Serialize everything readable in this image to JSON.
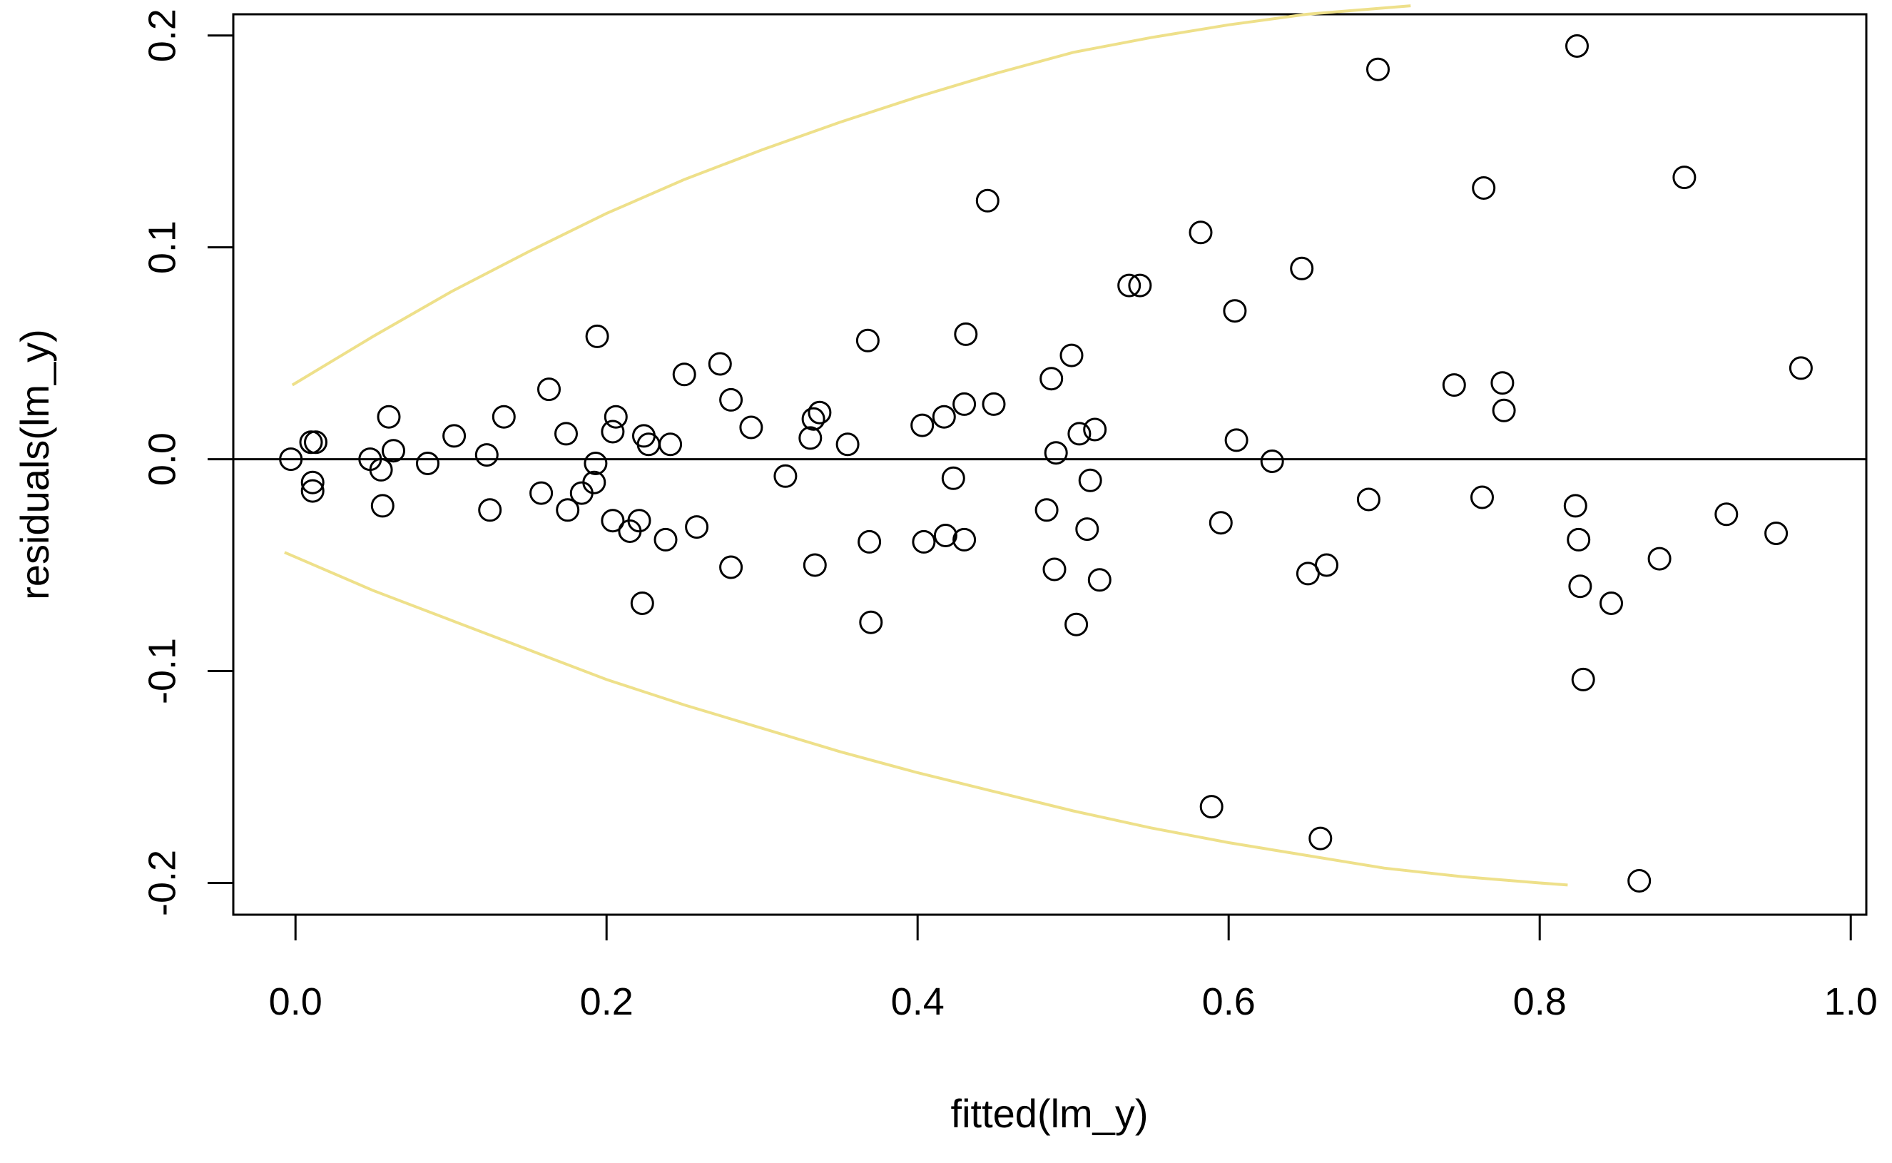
{
  "chart_data": {
    "type": "scatter",
    "title": "",
    "xlabel": "fitted(lm_y)",
    "ylabel": "residuals(lm_y)",
    "xlim": [
      -0.04,
      1.01
    ],
    "ylim": [
      -0.215,
      0.21
    ],
    "xticks": [
      0.0,
      0.2,
      0.4,
      0.6,
      0.8,
      1.0
    ],
    "xtick_labels": [
      "0.0",
      "0.2",
      "0.4",
      "0.6",
      "0.8",
      "1.0"
    ],
    "yticks": [
      -0.2,
      -0.1,
      0.0,
      0.1,
      0.2
    ],
    "ytick_labels": [
      "-0.2",
      "-0.1",
      "0.0",
      "0.1",
      "0.2"
    ],
    "grid": false,
    "legend": "none",
    "reference_line": {
      "y": 0.0,
      "color": "#000000"
    },
    "envelope": {
      "color": "#eee08a",
      "upper": [
        [
          -0.002,
          0.035
        ],
        [
          0.05,
          0.058
        ],
        [
          0.1,
          0.079
        ],
        [
          0.15,
          0.098
        ],
        [
          0.2,
          0.116
        ],
        [
          0.25,
          0.132
        ],
        [
          0.3,
          0.146
        ],
        [
          0.35,
          0.159
        ],
        [
          0.4,
          0.171
        ],
        [
          0.45,
          0.182
        ],
        [
          0.5,
          0.192
        ],
        [
          0.55,
          0.199
        ],
        [
          0.6,
          0.205
        ],
        [
          0.65,
          0.21
        ],
        [
          0.7,
          0.213
        ],
        [
          0.717,
          0.214
        ]
      ],
      "lower": [
        [
          -0.007,
          -0.044
        ],
        [
          0.05,
          -0.062
        ],
        [
          0.1,
          -0.076
        ],
        [
          0.15,
          -0.09
        ],
        [
          0.2,
          -0.104
        ],
        [
          0.25,
          -0.116
        ],
        [
          0.3,
          -0.127
        ],
        [
          0.35,
          -0.138
        ],
        [
          0.4,
          -0.148
        ],
        [
          0.45,
          -0.157
        ],
        [
          0.5,
          -0.166
        ],
        [
          0.55,
          -0.174
        ],
        [
          0.6,
          -0.181
        ],
        [
          0.65,
          -0.187
        ],
        [
          0.7,
          -0.193
        ],
        [
          0.75,
          -0.197
        ],
        [
          0.8,
          -0.2
        ],
        [
          0.818,
          -0.201
        ]
      ]
    },
    "points": [
      [
        -0.003,
        0.0
      ],
      [
        0.01,
        0.008
      ],
      [
        0.013,
        0.008
      ],
      [
        0.011,
        -0.011
      ],
      [
        0.011,
        -0.015
      ],
      [
        0.048,
        0.0
      ],
      [
        0.055,
        -0.005
      ],
      [
        0.056,
        -0.022
      ],
      [
        0.06,
        0.02
      ],
      [
        0.063,
        0.004
      ],
      [
        0.085,
        -0.002
      ],
      [
        0.102,
        0.011
      ],
      [
        0.123,
        0.002
      ],
      [
        0.125,
        -0.024
      ],
      [
        0.134,
        0.02
      ],
      [
        0.158,
        -0.016
      ],
      [
        0.163,
        0.033
      ],
      [
        0.174,
        0.012
      ],
      [
        0.175,
        -0.024
      ],
      [
        0.184,
        -0.016
      ],
      [
        0.192,
        -0.011
      ],
      [
        0.193,
        -0.002
      ],
      [
        0.194,
        0.058
      ],
      [
        0.204,
        -0.029
      ],
      [
        0.204,
        0.013
      ],
      [
        0.206,
        0.02
      ],
      [
        0.215,
        -0.034
      ],
      [
        0.221,
        -0.029
      ],
      [
        0.223,
        -0.068
      ],
      [
        0.224,
        0.011
      ],
      [
        0.227,
        0.007
      ],
      [
        0.238,
        -0.038
      ],
      [
        0.241,
        0.007
      ],
      [
        0.25,
        0.04
      ],
      [
        0.258,
        -0.032
      ],
      [
        0.273,
        0.045
      ],
      [
        0.28,
        -0.051
      ],
      [
        0.28,
        0.028
      ],
      [
        0.293,
        0.015
      ],
      [
        0.315,
        -0.008
      ],
      [
        0.331,
        0.01
      ],
      [
        0.333,
        0.019
      ],
      [
        0.334,
        -0.05
      ],
      [
        0.337,
        0.022
      ],
      [
        0.355,
        0.007
      ],
      [
        0.368,
        0.056
      ],
      [
        0.369,
        -0.039
      ],
      [
        0.37,
        -0.077
      ],
      [
        0.403,
        0.016
      ],
      [
        0.404,
        -0.039
      ],
      [
        0.417,
        0.02
      ],
      [
        0.418,
        -0.036
      ],
      [
        0.423,
        -0.009
      ],
      [
        0.43,
        0.026
      ],
      [
        0.43,
        -0.038
      ],
      [
        0.431,
        0.059
      ],
      [
        0.445,
        0.122
      ],
      [
        0.449,
        0.026
      ],
      [
        0.483,
        -0.024
      ],
      [
        0.486,
        0.038
      ],
      [
        0.488,
        -0.052
      ],
      [
        0.489,
        0.003
      ],
      [
        0.499,
        0.049
      ],
      [
        0.502,
        -0.078
      ],
      [
        0.504,
        0.012
      ],
      [
        0.509,
        -0.033
      ],
      [
        0.511,
        -0.01
      ],
      [
        0.514,
        0.014
      ],
      [
        0.517,
        -0.057
      ],
      [
        0.536,
        0.082
      ],
      [
        0.543,
        0.082
      ],
      [
        0.582,
        0.107
      ],
      [
        0.589,
        -0.164
      ],
      [
        0.595,
        -0.03
      ],
      [
        0.604,
        0.07
      ],
      [
        0.605,
        0.009
      ],
      [
        0.628,
        -0.001
      ],
      [
        0.647,
        0.09
      ],
      [
        0.651,
        -0.054
      ],
      [
        0.659,
        -0.179
      ],
      [
        0.663,
        -0.05
      ],
      [
        0.69,
        -0.019
      ],
      [
        0.696,
        0.184
      ],
      [
        0.745,
        0.035
      ],
      [
        0.763,
        -0.018
      ],
      [
        0.764,
        0.128
      ],
      [
        0.776,
        0.036
      ],
      [
        0.777,
        0.023
      ],
      [
        0.823,
        -0.022
      ],
      [
        0.824,
        0.195
      ],
      [
        0.825,
        -0.038
      ],
      [
        0.826,
        -0.06
      ],
      [
        0.828,
        -0.104
      ],
      [
        0.846,
        -0.068
      ],
      [
        0.864,
        -0.199
      ],
      [
        0.877,
        -0.047
      ],
      [
        0.893,
        0.133
      ],
      [
        0.92,
        -0.026
      ],
      [
        0.952,
        -0.035
      ],
      [
        0.968,
        0.043
      ]
    ]
  }
}
